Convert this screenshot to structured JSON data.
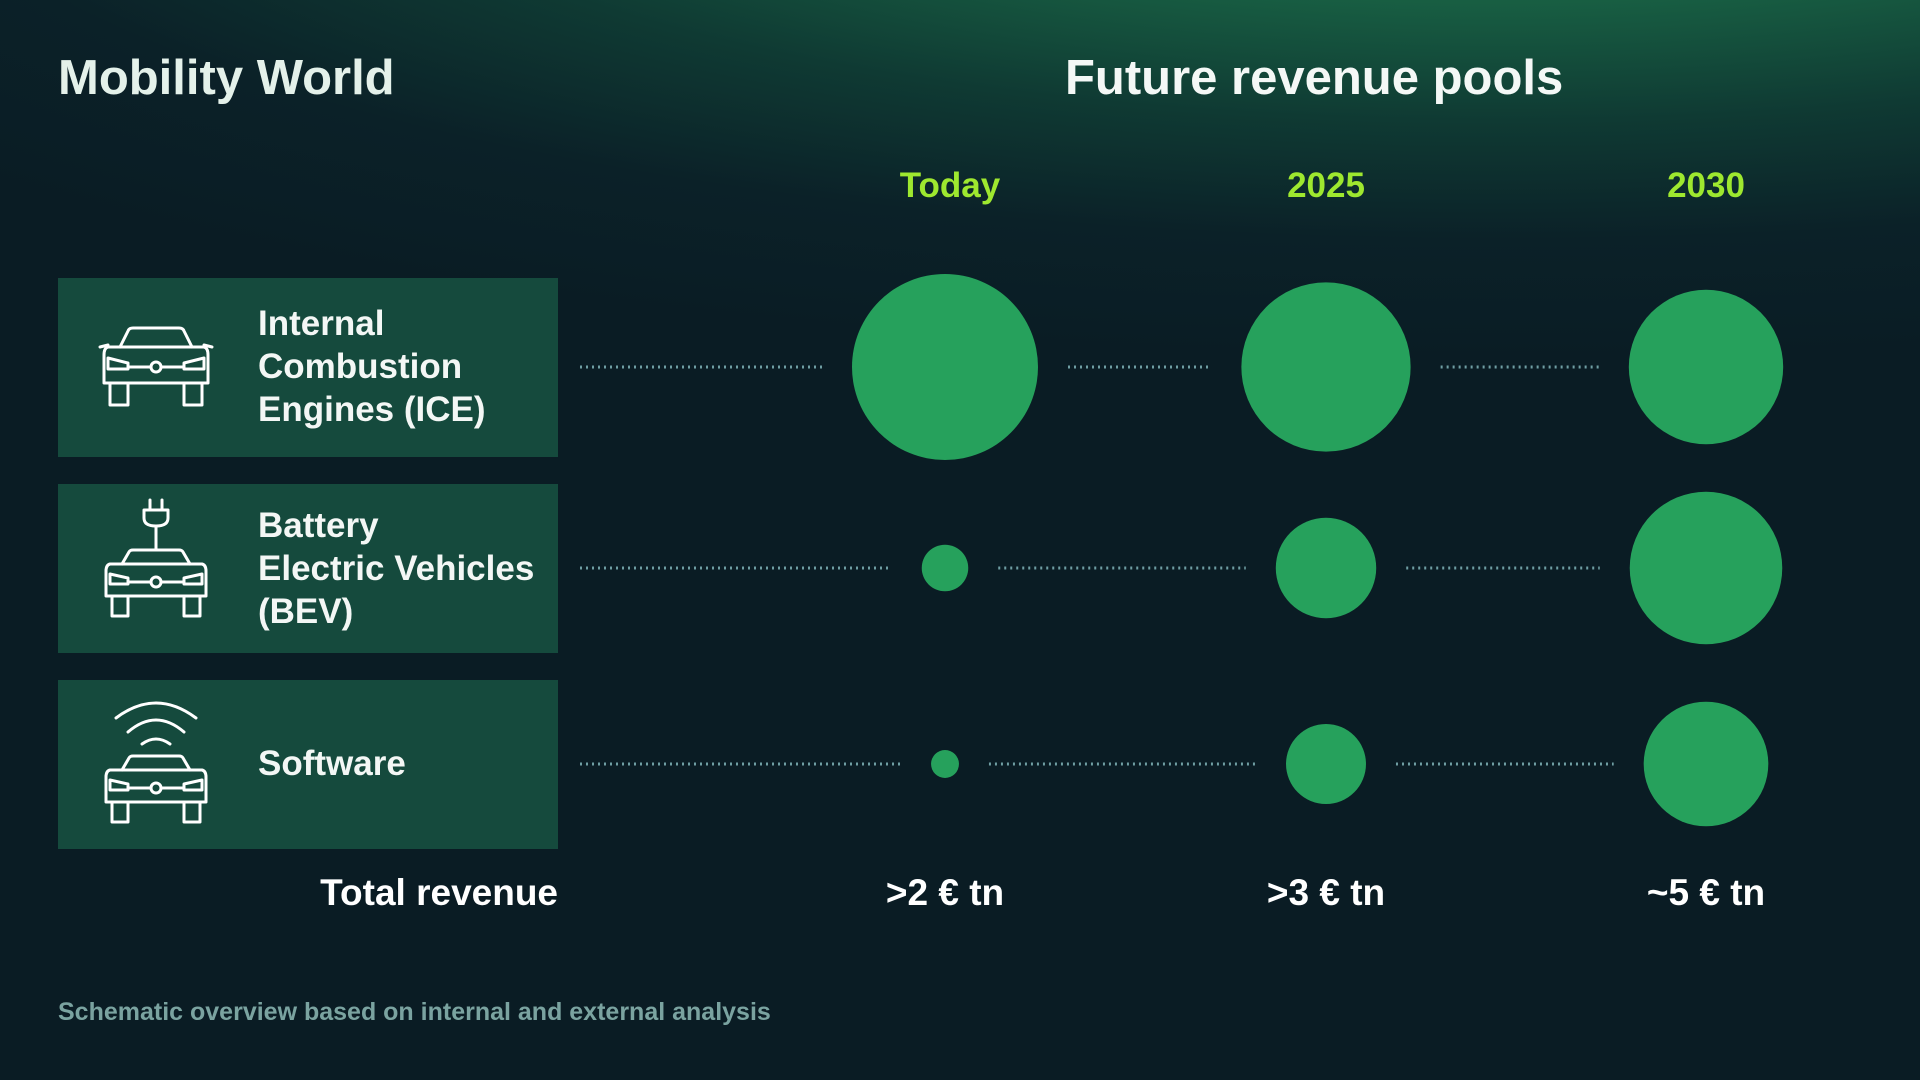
{
  "header": {
    "left_title": "Mobility World",
    "right_title": "Future revenue pools"
  },
  "rows": [
    {
      "label": "Internal\nCombustion\nEngines (ICE)",
      "icon": "car-icon"
    },
    {
      "label": "Battery\nElectric Vehicles\n(BEV)",
      "icon": "ev-car-plug-icon"
    },
    {
      "label": "Software",
      "icon": "connected-car-icon"
    }
  ],
  "footer": {
    "total_label": "Total revenue",
    "note": "Schematic overview based on internal and external analysis"
  },
  "colors": {
    "accent": "#9ee82f",
    "bubble": "#26a15c",
    "row_panel": "#154a3d",
    "dotted_line": "#6f9ea3"
  },
  "chart_data": {
    "type": "bubble",
    "title": "Future revenue pools",
    "columns": [
      "Today",
      "2025",
      "2030"
    ],
    "rows": [
      "Internal Combustion Engines (ICE)",
      "Battery Electric Vehicles (BEV)",
      "Software"
    ],
    "relative_size": [
      [
        1.0,
        0.91,
        0.83
      ],
      [
        0.25,
        0.54,
        0.82
      ],
      [
        0.15,
        0.43,
        0.67
      ]
    ],
    "totals": [
      ">2 € tn",
      ">3 € tn",
      "~5 € tn"
    ]
  }
}
